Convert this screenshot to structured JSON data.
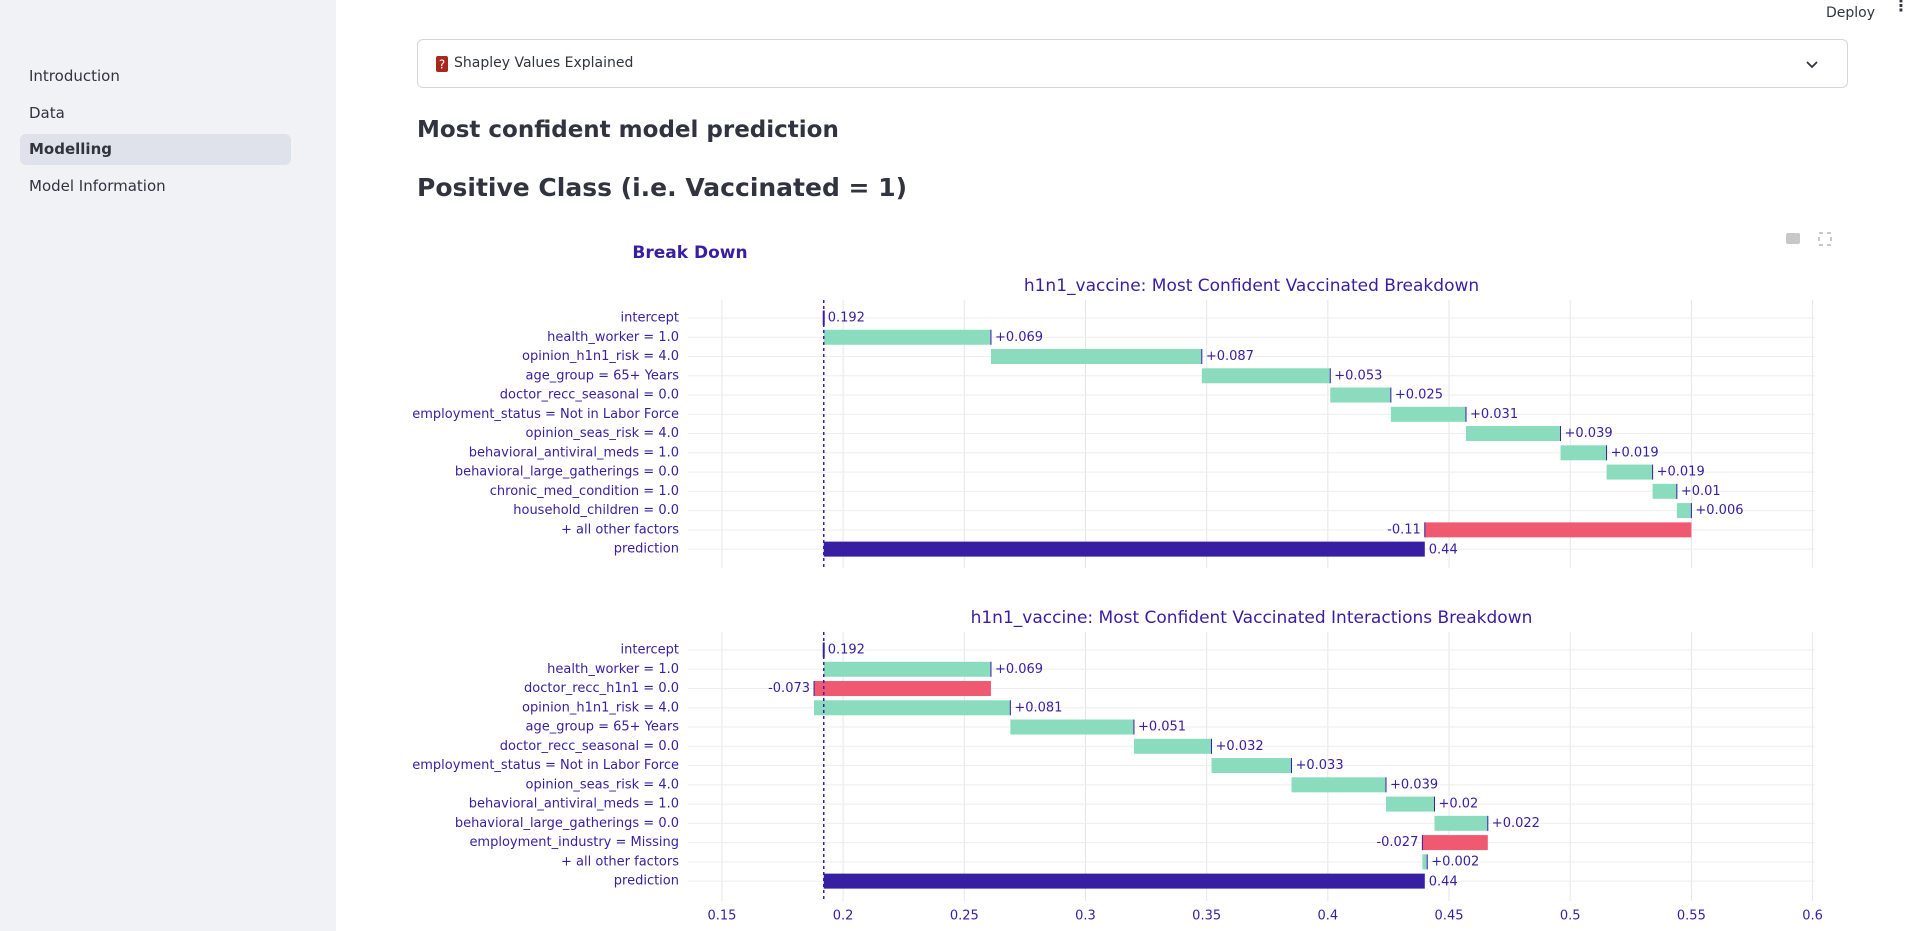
{
  "sidebar": {
    "nav": [
      "Introduction",
      "Data",
      "Modelling",
      "Model Information"
    ],
    "active": 2
  },
  "header": {
    "deploy": "Deploy"
  },
  "expander": {
    "label": "Shapley Values Explained"
  },
  "headings": [
    "Most confident model prediction",
    "Positive Class (i.e. Vaccinated = 1)"
  ],
  "figure_title": "Break Down",
  "chart_data": [
    {
      "type": "waterfall",
      "title": "h1n1_vaccine: Most Confident Vaccinated Breakdown",
      "categories": [
        "intercept",
        "health_worker = 1.0",
        "opinion_h1n1_risk = 4.0",
        "age_group = 65+ Years",
        "doctor_recc_seasonal = 0.0",
        "employment_status = Not in Labor Force",
        "opinion_seas_risk = 4.0",
        "behavioral_antiviral_meds = 1.0",
        "behavioral_large_gatherings = 0.0",
        "chronic_med_condition = 1.0",
        "household_children = 0.0",
        "+ all other factors",
        "prediction"
      ],
      "values": [
        0.192,
        0.069,
        0.087,
        0.053,
        0.025,
        0.031,
        0.039,
        0.019,
        0.019,
        0.01,
        0.006,
        -0.11,
        0.44
      ],
      "value_labels": [
        "0.192",
        "+0.069",
        "+0.087",
        "+0.053",
        "+0.025",
        "+0.031",
        "+0.039",
        "+0.019",
        "+0.019",
        "+0.01",
        "+0.006",
        "-0.11",
        "0.44"
      ],
      "colors": {
        "positive": "#8bdcbe",
        "negative": "#f05a71",
        "prediction": "#371ea3"
      },
      "xlim": [
        0.136,
        0.601
      ],
      "xticks": [
        0.15,
        0.2,
        0.25,
        0.3,
        0.35,
        0.4,
        0.45,
        0.5,
        0.55,
        0.6
      ],
      "xtick_labels": false,
      "grid": true
    },
    {
      "type": "waterfall",
      "title": "h1n1_vaccine: Most Confident Vaccinated Interactions Breakdown",
      "categories": [
        "intercept",
        "health_worker = 1.0",
        "doctor_recc_h1n1 = 0.0",
        "opinion_h1n1_risk = 4.0",
        "age_group = 65+ Years",
        "doctor_recc_seasonal = 0.0",
        "employment_status = Not in Labor Force",
        "opinion_seas_risk = 4.0",
        "behavioral_antiviral_meds = 1.0",
        "behavioral_large_gatherings = 0.0",
        "employment_industry = Missing",
        "+ all other factors",
        "prediction"
      ],
      "values": [
        0.192,
        0.069,
        -0.073,
        0.081,
        0.051,
        0.032,
        0.033,
        0.039,
        0.02,
        0.022,
        -0.027,
        0.002,
        0.44
      ],
      "value_labels": [
        "0.192",
        "+0.069",
        "-0.073",
        "+0.081",
        "+0.051",
        "+0.032",
        "+0.033",
        "+0.039",
        "+0.02",
        "+0.022",
        "-0.027",
        "+0.002",
        "0.44"
      ],
      "colors": {
        "positive": "#8bdcbe",
        "negative": "#f05a71",
        "prediction": "#371ea3"
      },
      "xlim": [
        0.136,
        0.601
      ],
      "xticks": [
        0.15,
        0.2,
        0.25,
        0.3,
        0.35,
        0.4,
        0.45,
        0.5,
        0.55,
        0.6
      ],
      "xtick_labels": true,
      "grid": true
    }
  ]
}
